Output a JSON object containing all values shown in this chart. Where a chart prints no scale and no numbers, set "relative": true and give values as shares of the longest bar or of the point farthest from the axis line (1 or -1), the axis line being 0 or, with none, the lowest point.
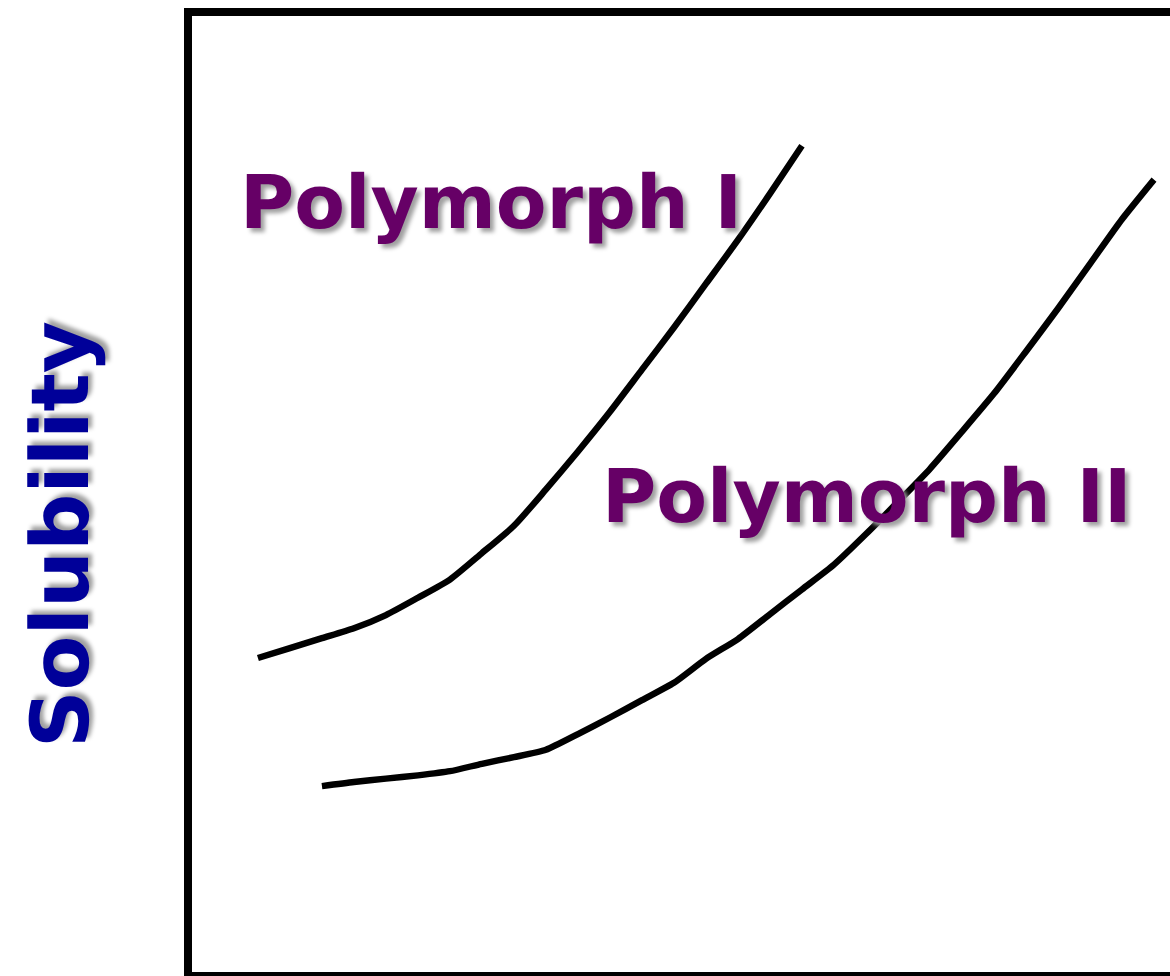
{
  "chart_data": {
    "type": "line",
    "ylabel": "Solubility",
    "relative": true,
    "categories": [
      null,
      null,
      null,
      null,
      null,
      null,
      null,
      null,
      null,
      null,
      null,
      null,
      null,
      null,
      null,
      null,
      null,
      null,
      null,
      null,
      null,
      null,
      null,
      null,
      null,
      null,
      null,
      null,
      null
    ],
    "series": [
      {
        "name": "Polymorph I",
        "color": "#000000",
        "values": [
          0.38,
          0.392,
          0.404,
          0.416,
          0.432,
          0.453,
          0.475,
          0.507,
          0.54,
          0.584,
          0.63,
          0.678,
          0.729,
          0.78,
          0.833,
          0.886,
          0.942,
          1.0,
          null,
          null,
          null,
          null,
          null,
          null,
          null,
          null,
          null,
          null,
          null
        ]
      },
      {
        "name": "Polymorph II",
        "color": "#000000",
        "values": [
          null,
          null,
          0.225,
          0.23,
          0.234,
          0.238,
          0.243,
          0.252,
          0.26,
          0.269,
          0.288,
          0.308,
          0.329,
          0.35,
          0.379,
          0.403,
          0.433,
          0.463,
          0.493,
          0.53,
          0.569,
          0.609,
          0.654,
          0.7,
          0.751,
          0.803,
          0.857,
          0.911,
          0.959
        ]
      }
    ]
  }
}
